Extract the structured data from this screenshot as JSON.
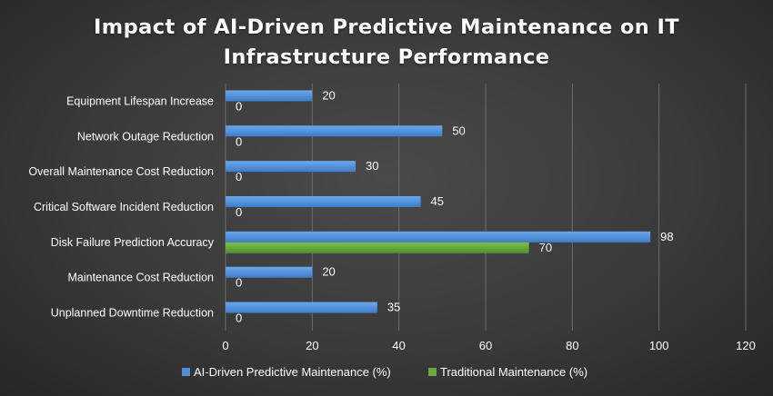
{
  "chart_data": {
    "type": "bar",
    "orientation": "horizontal",
    "title": "Impact of AI-Driven Predictive Maintenance on IT Infrastructure Performance",
    "title_lines": [
      "Impact of AI-Driven Predictive Maintenance on IT",
      "Infrastructure Performance"
    ],
    "categories": [
      "Equipment Lifespan Increase",
      "Network Outage Reduction",
      "Overall Maintenance Cost Reduction",
      "Critical Software Incident Reduction",
      "Disk Failure Prediction Accuracy",
      "Maintenance Cost Reduction",
      "Unplanned Downtime Reduction"
    ],
    "series": [
      {
        "name": "AI-Driven Predictive Maintenance (%)",
        "values": [
          20,
          50,
          30,
          45,
          98,
          20,
          35
        ],
        "color": "#4f8fd8"
      },
      {
        "name": "Traditional Maintenance (%)",
        "values": [
          0,
          0,
          0,
          0,
          70,
          0,
          0
        ],
        "color": "#6aaa3c"
      }
    ],
    "xlim": [
      0,
      120
    ],
    "xticks": [
      0,
      20,
      40,
      60,
      80,
      100,
      120
    ],
    "grid": true,
    "legend_position": "bottom",
    "background": "#3a3a3a",
    "text_color": "#ffffff"
  }
}
